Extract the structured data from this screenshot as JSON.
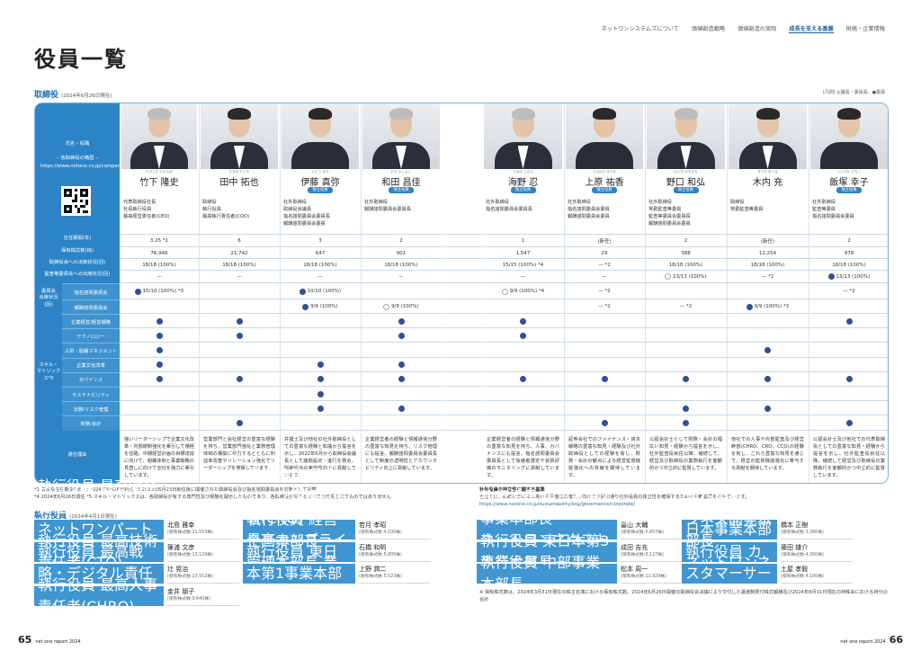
{
  "nav": [
    "ネットワンシステムズについて",
    "価値創造戦略",
    "価値創造の実践",
    "成長を支える基盤",
    "財務・企業情報"
  ],
  "page_title": "役員一覧",
  "directors_title": "取締役",
  "directors_date": "(2024年6月26日現在)",
  "legend": "(凡例) ◎議長・委員長、●委員",
  "left_header": {
    "name_role": "氏名・役職",
    "profile_title": "– 各取締役の略歴 –",
    "url": "https://www.netone.co.jp/company/executive/"
  },
  "row_labels": [
    "在任期間(年)",
    "保有株式数(株)",
    "取締役会への出席状況(回)",
    "監査等委員会への出席状況(回)"
  ],
  "committee_group": "委員会\n出席状況\n(回)",
  "committee_labels": [
    "指名諮問委員会",
    "報酬諮問委員会"
  ],
  "skill_group": "スキル・\nマトリックス*5",
  "skills": [
    "企業経営/経営戦略",
    "テクノロジー",
    "人財・組織マネジメント",
    "企業文化改革",
    "ガバナンス",
    "サステナビリティ",
    "法務/リスク管理",
    "財務/会計"
  ],
  "reason_label": "選任理由",
  "independent_label": "独立役員",
  "directors": [
    {
      "ruby": "たけした たかふみ",
      "name": "竹下 隆史",
      "ind": false,
      "profile": "代表取締役社長\n社長執行役員\n最高経営責任者(CEO)",
      "tenure": "3.25 *1",
      "shares": "76,946",
      "board": "18/18 (100%)",
      "audit": "—",
      "nom": "10/10 (100%) *3",
      "nom_mark": "dot",
      "rem": "",
      "rem_mark": "",
      "skills": [
        1,
        1,
        1,
        1,
        1,
        0,
        0,
        0
      ],
      "reason": "強いリーダーシップで企業文化改革・内部統制強化を牽引して積極を往臨。中期経営計画の目標達成に向けて、組織体制と事業戦略の見直しに向けて全社を強力に牽引しています。"
    },
    {
      "ruby": "たなか たくや",
      "name": "田中 拓也",
      "ind": false,
      "profile": "取締役\n執行役員\n最高執行責任者(COO)",
      "tenure": "6",
      "shares": "21,742",
      "board": "18/18 (100%)",
      "audit": "—",
      "nom": "",
      "nom_mark": "",
      "rem": "",
      "rem_mark": "",
      "skills": [
        1,
        1,
        0,
        0,
        1,
        0,
        0,
        1
      ],
      "reason": "営業部門と会社経営の豊富な経験を持ち、営業部門強化と業務管理体制の構築に尽力するとともに利益率改善やリレーション強化でリーダーシップを発揮しています。"
    },
    {
      "ruby": "いとう まや",
      "name": "伊藤 真弥",
      "ind": true,
      "profile": "社外取締役\n取締役会議長\n指名諮問委員会委員長\n報酬諮問委員会委員",
      "tenure": "3",
      "shares": "647",
      "board": "18/18 (100%)",
      "audit": "—",
      "nom": "10/10 (100%)",
      "nom_mark": "dot",
      "rem": "9/9 (100%)",
      "rem_mark": "dot",
      "skills": [
        0,
        0,
        0,
        1,
        1,
        1,
        1,
        0
      ],
      "reason": "弁護士及び他社の社外取締役としての豊富な経験と知識から提言を示し、2022年6月から取締役会議長として議題設定・進行を務め、取締役会の実効性向上に貢献しています。"
    },
    {
      "ruby": "わだ よしよし",
      "name": "和田 昌佳",
      "ind": true,
      "profile": "社外取締役\n報酬諮問委員会委員長",
      "tenure": "2",
      "shares": "901",
      "board": "18/18 (100%)",
      "audit": "—",
      "nom": "",
      "nom_mark": "",
      "rem": "9/9 (100%)",
      "rem_mark": "ring",
      "skills": [
        1,
        1,
        0,
        1,
        1,
        0,
        1,
        0
      ],
      "reason": "企業経営者の経験と情報通信分野の豊富な知見を持ち、リスク管理にも提言。報酬諮問委員会委員長として制度の透明性とアカウンタビリティ向上に貢献しています。"
    },
    {
      "ruby": "うみの しのぶ",
      "name": "海野 忍",
      "ind": true,
      "profile": "社外取締役\n指名諮問委員会委員長",
      "tenure": "1",
      "shares": "1,547",
      "board": "15/15 (100%) *4",
      "audit": "—",
      "nom": "9/9 (100%) *4",
      "nom_mark": "ring",
      "rem": "",
      "rem_mark": "",
      "skills": [
        1,
        1,
        0,
        0,
        1,
        0,
        0,
        0
      ],
      "reason": "企業経営者の経験と情報通信分野の豊富な知見を持ち、人事、ガバナンスにも提言。指名諮問委員会委員長として後継者選定や資質評価のモニタリングに貢献しています。"
    },
    {
      "ruby": "うえはら ゆうか",
      "name": "上原 祐香",
      "ind": true,
      "profile": "社外取締役\n指名諮問委員会委員\n報酬諮問委員会委員",
      "tenure": "(新任)",
      "shares": "29",
      "board": "— *2",
      "audit": "—",
      "nom": "— *2",
      "nom_mark": "",
      "rem": "— *2",
      "rem_mark": "",
      "skills": [
        0,
        0,
        0,
        0,
        1,
        0,
        0,
        1
      ],
      "reason": "証券会社でのファイナンス・資本戦略の豊富な知見・経験及び社外取締役としての経験を有し、財務・会計の観点による経営監督機能強化への貢献を期待しています。"
    },
    {
      "ruby": "のぐち かずひろ",
      "name": "野口 和弘",
      "ind": true,
      "profile": "社外取締役\n常勤監査等委員\n監査等委員会委員長\n報酬諮問委員会委員",
      "tenure": "2",
      "shares": "388",
      "board": "18/18 (100%)",
      "audit": "13/13 (100%)",
      "audit_mark": "ring",
      "nom": "",
      "nom_mark": "",
      "rem": "— *2",
      "rem_mark": "",
      "skills": [
        0,
        0,
        0,
        0,
        1,
        0,
        1,
        1
      ],
      "reason": "公認会計士として財務・会計の幅広い知見・経験から提言を示し、社外監査役就任以降、継続して、経営及び取締役の業務執行を客観的かつ中立的に監督しています。"
    },
    {
      "ruby": "きうち みつる",
      "name": "木内 充",
      "ind": false,
      "profile": "取締役\n常勤監査等委員",
      "tenure": "(新任)",
      "shares": "12,254",
      "board": "18/18 (100%)",
      "audit": "— *2",
      "audit_mark": "",
      "nom": "",
      "nom_mark": "",
      "rem": "9/9 (100%) *3",
      "rem_mark": "dot",
      "skills": [
        0,
        0,
        1,
        0,
        1,
        0,
        1,
        0
      ],
      "reason": "他社での人事や内部監査及び経営幹部(CHRO、CRO、CCO)の経験を有し、これら豊富な知見を通じて、経営の監督機能強化に寄与する貢献を期待しています。"
    },
    {
      "ruby": "いいづか さちこ",
      "name": "飯塚 幸子",
      "ind": true,
      "profile": "社外取締役\n監査等委員\n指名諮問委員会委員",
      "tenure": "2",
      "shares": "978",
      "board": "18/18 (100%)",
      "audit": "13/13 (100%)",
      "audit_mark": "dot",
      "nom": "— *2",
      "nom_mark": "",
      "rem": "",
      "rem_mark": "",
      "skills": [
        1,
        0,
        0,
        0,
        1,
        0,
        0,
        1
      ],
      "reason": "公認会計士及び他社での代表取締役としての豊富な知見・経験から提言を示し、社外監査役就任以降、継続して経営及び取締役の業務執行を客観的かつ中立的に監督しています。"
    }
  ],
  "footnotes": "*1 取締役在任期間6年 *2 2024年6月26日就任 *3 2023年6月23日就任後に開催された取締役会及び指名諮問委員会を対象として記載\n*4 2024年6月26日退任 *5 スキル・マトリックスは、各取締役が有する専門性及び経験を開示したものであり、各取締役が有するすべての知見を表すものではありません",
  "independence": {
    "title": "社外役員の独立性に関する基準",
    "text": "当社では、取締役会による高い監督機能の確立に向けて下記の通り社外役員の独立性を確保するための判断基準を定めています。",
    "url": "https://www.netone.co.jp/sustainability/esg/governance/corporate/"
  },
  "exec_title": "執行役員",
  "exec_date": "(2024年4月1日現在)",
  "executives": [
    [
      {
        "role": "執行役員 最高財務責任者(CFO)\nネットワンパートナーズ株式会社 取締役",
        "name": "北島 雅幸",
        "shares": "(保有株式数:11,553株)"
      },
      {
        "role": "執行役員 最高技術責任者(CTO)",
        "name": "篠浦 文彦",
        "shares": "(保有株式数:13,129株)"
      },
      {
        "role": "執行役員 最高戦略・デジタル責任者(CSDO)",
        "name": "辻 晃治",
        "shares": "(保有株式数:13,552株)"
      },
      {
        "role": "執行役員 最高人事責任者(CHRO)",
        "name": "金井 朋子",
        "shares": "(保有株式数:9,640株)"
      }
    ],
    [
      {
        "role": "執行役員 最高リスク管理責任者(CRO)\n最高コンプライアンス責任者(CCO)",
        "name": "若月 孝昭",
        "shares": "(保有株式数:4,100株)"
      },
      {
        "role": "執行役員 経営企画本部長\n管理本部長 業務統制本部長",
        "name": "石橋 和明",
        "shares": "(保有株式数:5,800株)"
      },
      {
        "role": "執行役員 東日本第1事業本部長",
        "name": "上野 潤二",
        "shares": "(保有株式数:5,523株)"
      }
    ],
    [
      {
        "role": "執行役員 東日本第2事業本部長\nネットワンネクスト株式会社 取締役",
        "name": "畠山 大輔",
        "shares": "(保有株式数:5,457株)"
      },
      {
        "role": "執行役員 東日本第3事業本部長",
        "name": "成田 吉充",
        "shares": "(保有株式数:6,127株)"
      },
      {
        "role": "執行役員 中部事業本部長",
        "name": "松本 周一",
        "shares": "(保有株式数:11,929株)"
      }
    ],
    [
      {
        "role": "執行役員 西日本事業本部長",
        "name": "橋本 正樹",
        "shares": "(保有株式数:3,366株)"
      },
      {
        "role": "執行役員 ビジネス開発本部長\nネットワンネクスト株式会社 取締役",
        "name": "藤田 雄介",
        "shares": "(保有株式数:4,300株)"
      },
      {
        "role": "執行役員 カスタマーサービス本部長",
        "name": "土屋 孝毅",
        "shares": "(保有株式数:4,100株)"
      }
    ]
  ],
  "exec_note": "※ 保有株式数は、2024年3月31日現在の株主名簿における保有株式数。2024年6月26日開催の取締役会決議により交付した譲渡制限付株式報酬及び2024年8月31日現在の持株会における持分の合計",
  "page_left": "65",
  "page_right": "66",
  "report": "net one report 2024"
}
